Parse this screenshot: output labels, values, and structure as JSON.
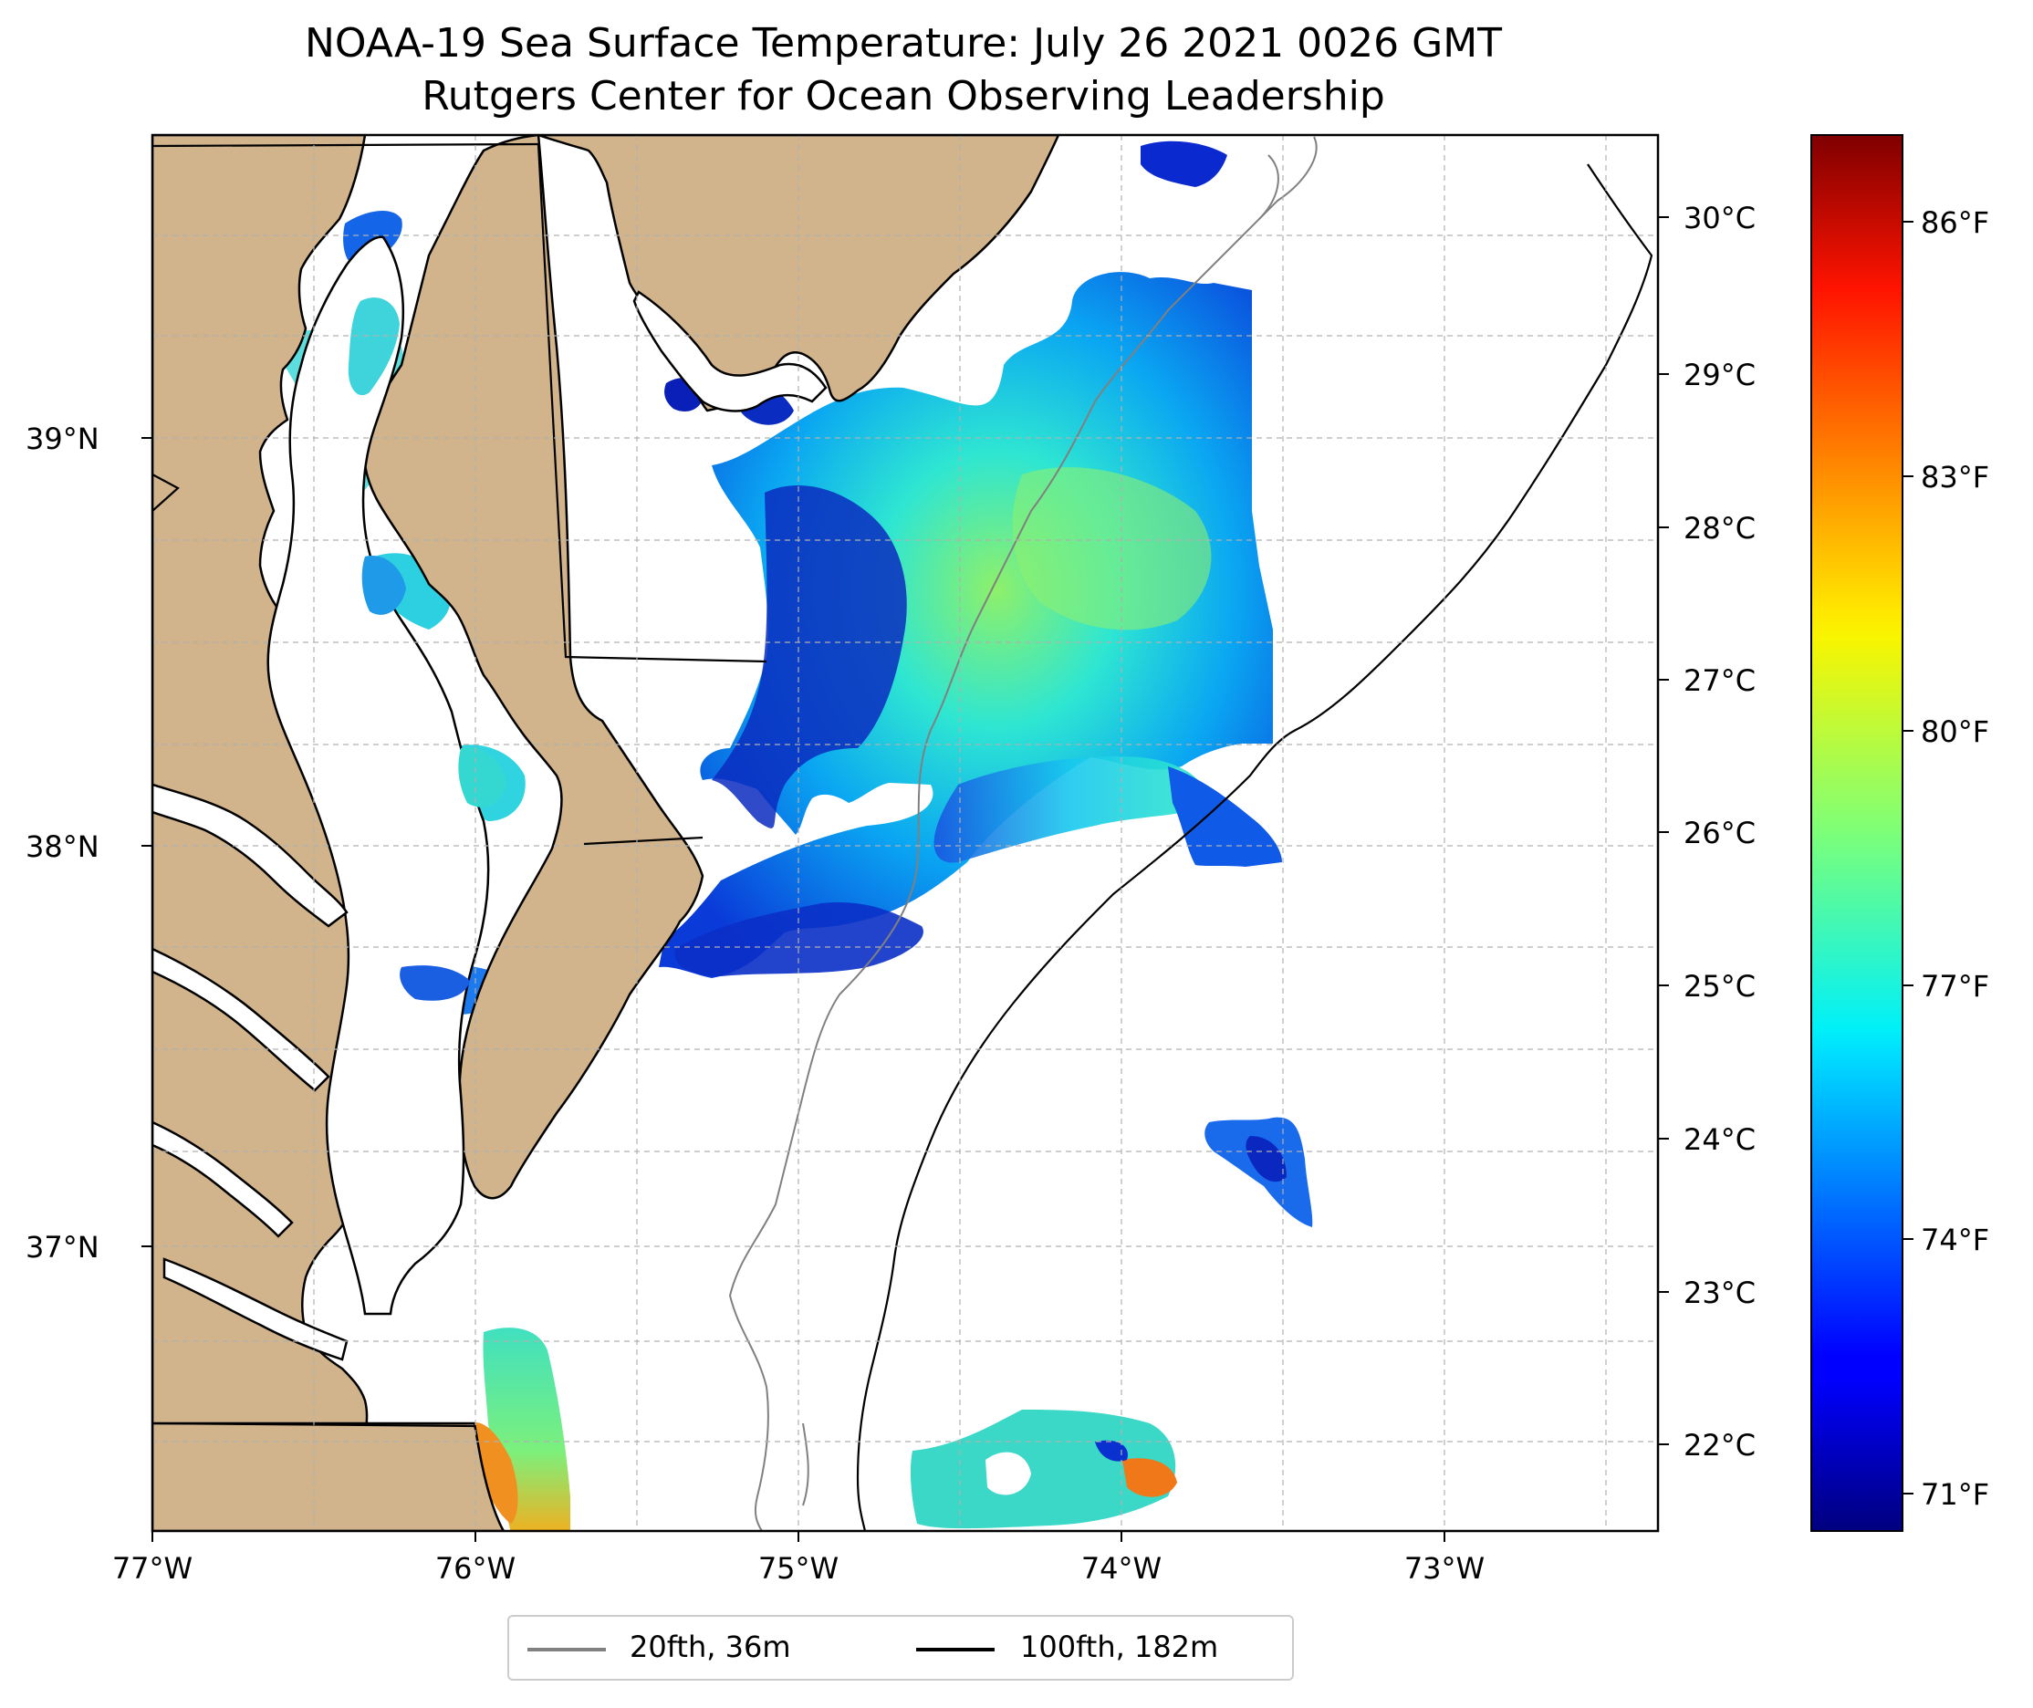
{
  "title": "NOAA-19 Sea Surface Temperature: July 26 2021 0026 GMT",
  "subtitle": "Rutgers Center for Ocean Observing Leadership",
  "map": {
    "type": "sea-surface-temperature-map",
    "extent_lon": [
      -77.0,
      -72.3
    ],
    "extent_lat": [
      36.3,
      39.75
    ],
    "land_color": "#d2b48c",
    "no_data_color": "#ffffff",
    "gridlines": true,
    "lon_labels": [
      "77°W",
      "76°W",
      "75°W",
      "74°W",
      "73°W"
    ],
    "lat_labels": [
      "39°N",
      "38°N",
      "37°N"
    ]
  },
  "colorbar": {
    "colormap": "jet",
    "celsius_labels": [
      "30°C",
      "29°C",
      "28°C",
      "27°C",
      "26°C",
      "25°C",
      "24°C",
      "23°C",
      "22°C"
    ],
    "fahrenheit_labels": [
      "86°F",
      "83°F",
      "80°F",
      "77°F",
      "74°F",
      "71°F"
    ],
    "range_celsius": [
      21.5,
      30.6
    ]
  },
  "legend": {
    "entries": [
      {
        "label": "20fth, 36m",
        "color": "#808080"
      },
      {
        "label": "100fth, 182m",
        "color": "#000000"
      }
    ]
  }
}
